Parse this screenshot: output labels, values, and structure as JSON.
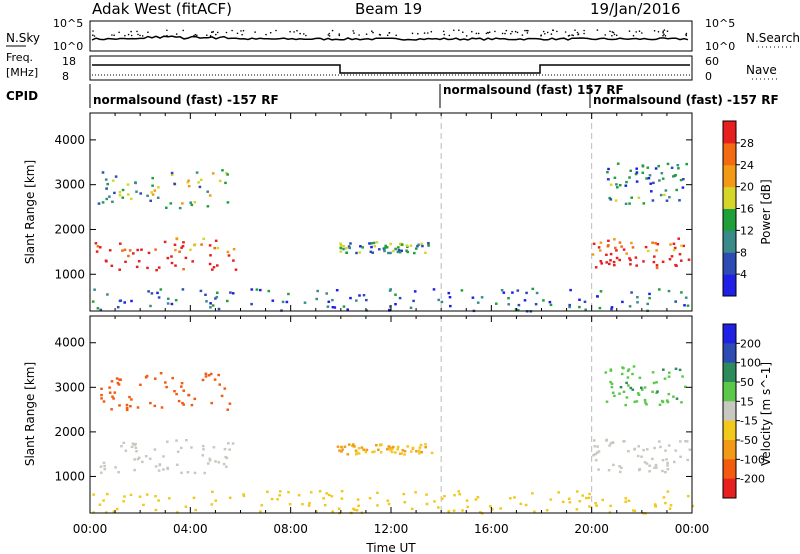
{
  "header": {
    "station": "Adak West (fitACF)",
    "beam": "Beam 19",
    "date": "19/Jan/2016"
  },
  "top_panels": {
    "nsky": {
      "label": "N.Sky",
      "ticks": [
        "10^5",
        "10^0"
      ]
    },
    "nsearch": {
      "label": "N.Search",
      "ticks": [
        "10^5",
        "10^0"
      ]
    },
    "freq": {
      "label_line1": "Freq.",
      "label_line2": "[MHz]",
      "ticks": [
        "18",
        "8"
      ]
    },
    "nave": {
      "label": "Nave",
      "ticks": [
        "60",
        "0"
      ]
    },
    "cpid": {
      "label": "CPID",
      "segments": [
        "normalsound (fast) -157 RF",
        "normalsound (fast) 157 RF",
        "normalsound (fast) -157 RF"
      ]
    }
  },
  "chart_data": [
    {
      "type": "heatmap",
      "title": "",
      "xlabel": "Time UT",
      "ylabel": "Slant Range [km]",
      "x_ticks": [
        "00:00",
        "04:00",
        "08:00",
        "12:00",
        "16:00",
        "20:00",
        "00:00"
      ],
      "x_range_hours": [
        0,
        24
      ],
      "ylim": [
        180,
        4600
      ],
      "y_ticks": [
        1000,
        2000,
        3000,
        4000
      ],
      "colorbar": {
        "label": "Power [dB]",
        "ticks": [
          "4",
          "8",
          "12",
          "16",
          "20",
          "24",
          "28"
        ],
        "colors": [
          "#1f1fe6",
          "#2c4cb4",
          "#3b8a8a",
          "#1e9f3a",
          "#d6d62a",
          "#f29a16",
          "#f26b10",
          "#e81f1f"
        ]
      },
      "regions": [
        {
          "x": [
            0.1,
            5.8
          ],
          "y": [
            1100,
            1850
          ],
          "value": 24
        },
        {
          "x": [
            0.3,
            5.6
          ],
          "y": [
            2500,
            3350
          ],
          "value": 14
        },
        {
          "x": [
            9.8,
            13.6
          ],
          "y": [
            1500,
            1750
          ],
          "value": 12
        },
        {
          "x": [
            0,
            24
          ],
          "y": [
            200,
            700
          ],
          "value": 8
        },
        {
          "x": [
            20.0,
            23.9
          ],
          "y": [
            1100,
            1850
          ],
          "value": 24
        },
        {
          "x": [
            20.5,
            23.8
          ],
          "y": [
            2600,
            3500
          ],
          "value": 10
        }
      ]
    },
    {
      "type": "heatmap",
      "title": "",
      "xlabel": "Time UT",
      "ylabel": "Slant Range [km]",
      "x_ticks": [
        "00:00",
        "04:00",
        "08:00",
        "12:00",
        "16:00",
        "20:00",
        "00:00"
      ],
      "x_range_hours": [
        0,
        24
      ],
      "ylim": [
        180,
        4600
      ],
      "y_ticks": [
        1000,
        2000,
        3000,
        4000
      ],
      "colorbar": {
        "label": "Velocity [m s^-1]",
        "ticks": [
          "200",
          "100",
          "50",
          "15",
          "-15",
          "-50",
          "-100",
          "-200"
        ],
        "colors": [
          "#1f1fe6",
          "#2c4cb4",
          "#2d8a5a",
          "#5cc84a",
          "#c8c8c0",
          "#f2c81a",
          "#f29a16",
          "#f25a10",
          "#e81f1f"
        ]
      },
      "regions": [
        {
          "x": [
            0.1,
            5.8
          ],
          "y": [
            1100,
            1850
          ],
          "value": 0
        },
        {
          "x": [
            0.3,
            5.6
          ],
          "y": [
            2500,
            3350
          ],
          "value": -150
        },
        {
          "x": [
            9.8,
            13.6
          ],
          "y": [
            1500,
            1750
          ],
          "value": -50
        },
        {
          "x": [
            0,
            24
          ],
          "y": [
            200,
            700
          ],
          "value": -30
        },
        {
          "x": [
            20.0,
            23.9
          ],
          "y": [
            1100,
            1850
          ],
          "value": 0
        },
        {
          "x": [
            20.5,
            23.8
          ],
          "y": [
            2600,
            3500
          ],
          "value": 40
        }
      ]
    }
  ]
}
